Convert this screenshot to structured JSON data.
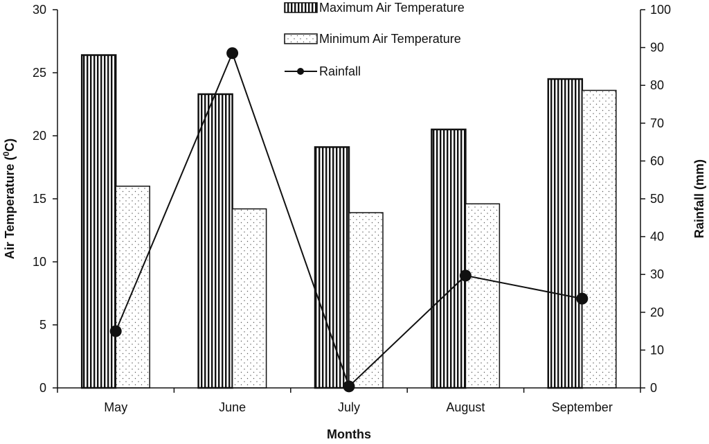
{
  "chart_data": {
    "type": "bar",
    "title": "",
    "xlabel": "Months",
    "ylabel": "Air Temperature (0C)",
    "ylabel_parts": {
      "main": "Air Temperature (",
      "sup": "0",
      "end": "C)"
    },
    "y2label": "Rainfall (mm)",
    "categories": [
      "May",
      "June",
      "July",
      "August",
      "September"
    ],
    "ylim": [
      0,
      30
    ],
    "y2lim": [
      0,
      100
    ],
    "yticks": [
      0,
      5,
      10,
      15,
      20,
      25,
      30
    ],
    "y2ticks": [
      0,
      10,
      20,
      30,
      40,
      50,
      60,
      70,
      80,
      90,
      100
    ],
    "grid": false,
    "legend_position": "top-center",
    "series": [
      {
        "name": "Maximum Air Temperature",
        "type": "bar",
        "axis": "left",
        "pattern": "vertical-stripes",
        "values": [
          26.4,
          23.3,
          19.1,
          20.5,
          24.5
        ]
      },
      {
        "name": "Minimum Air Temperature",
        "type": "bar",
        "axis": "left",
        "pattern": "dots",
        "values": [
          16.0,
          14.2,
          13.9,
          14.6,
          23.6
        ]
      },
      {
        "name": "Rainfall",
        "type": "line",
        "axis": "right",
        "marker": "circle",
        "values": [
          15.0,
          88.5,
          0.4,
          29.7,
          23.6
        ]
      }
    ]
  }
}
